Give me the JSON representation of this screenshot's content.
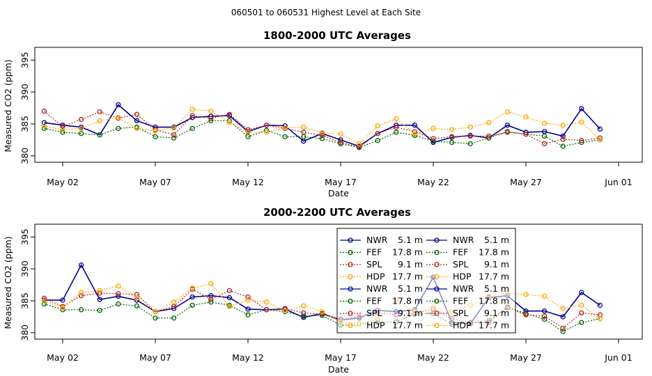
{
  "figure_title": "060501  to  060531 Highest Level at Each Site",
  "colors": {
    "NWR": "#00008b",
    "FEF": "#006400",
    "SPL": "#b22222",
    "HDP": "#ffa500"
  },
  "chart_data": [
    {
      "type": "line",
      "title": "1800-2000 UTC Averages",
      "xlabel": "Date",
      "ylabel": "Measured CO2 (ppm)",
      "ylim": [
        379,
        397
      ],
      "yticks": [
        "380",
        "385",
        "390",
        "395"
      ],
      "xticks": [
        "May 02",
        "May 07",
        "May 12",
        "May 17",
        "May 22",
        "May 27",
        "Jun 01"
      ],
      "x_start_day": 1,
      "x_end_day": 31,
      "series": [
        {
          "name": "NWR",
          "height": "5.1 m",
          "values": [
            385.2,
            384.8,
            384.5,
            383.3,
            388.0,
            385.5,
            384.5,
            384.5,
            386.0,
            386.2,
            386.3,
            383.8,
            384.8,
            384.7,
            382.3,
            383.5,
            382.5,
            381.5,
            383.5,
            384.8,
            384.8,
            382.1,
            382.9,
            383.2,
            382.8,
            384.8,
            383.7,
            383.8,
            383.1,
            387.4,
            384.2
          ]
        },
        {
          "name": "FEF",
          "height": "17.8 m",
          "values": [
            384.3,
            383.7,
            383.5,
            383.3,
            384.3,
            384.5,
            383.0,
            382.8,
            384.3,
            385.5,
            385.5,
            383.0,
            384.0,
            383.0,
            383.0,
            382.7,
            381.9,
            381.3,
            382.4,
            383.7,
            383.2,
            382.3,
            382.1,
            381.9,
            382.8,
            383.8,
            383.4,
            383.1,
            381.5,
            382.1,
            382.5
          ]
        },
        {
          "name": "SPL",
          "height": "9.1 m",
          "values": [
            387.0,
            384.6,
            385.7,
            386.9,
            385.9,
            386.5,
            384.1,
            383.3,
            386.3,
            385.9,
            386.5,
            384.1,
            384.8,
            384.3,
            383.7,
            383.2,
            382.1,
            381.4,
            383.5,
            384.5,
            383.8,
            382.7,
            383.0,
            383.1,
            383.1,
            383.7,
            383.4,
            381.9,
            382.6,
            382.4,
            382.8
          ]
        },
        {
          "name": "HDP",
          "height": "17.7 m",
          "values": [
            384.7,
            384.1,
            384.3,
            385.5,
            386.0,
            384.3,
            383.9,
            384.4,
            387.3,
            387.0,
            385.2,
            383.7,
            383.7,
            384.4,
            384.5,
            383.6,
            383.4,
            381.9,
            384.7,
            385.8,
            383.4,
            384.3,
            384.1,
            384.5,
            385.2,
            386.9,
            386.1,
            385.1,
            384.8,
            385.3,
            382.5
          ]
        }
      ]
    },
    {
      "type": "line",
      "title": "2000-2200 UTC Averages",
      "xlabel": "Date",
      "ylabel": "Measured CO2 (ppm)",
      "ylim": [
        379,
        397
      ],
      "yticks": [
        "380",
        "385",
        "390",
        "395"
      ],
      "xticks": [
        "May 02",
        "May 07",
        "May 12",
        "May 17",
        "May 22",
        "May 27",
        "Jun 01"
      ],
      "x_start_day": 1,
      "x_end_day": 31,
      "series": [
        {
          "name": "NWR",
          "height": "5.1 m",
          "values": [
            385.1,
            385.1,
            390.6,
            385.2,
            385.7,
            385.1,
            383.3,
            383.8,
            385.6,
            385.8,
            385.5,
            383.7,
            383.6,
            383.7,
            382.4,
            383.0,
            382.0,
            382.3,
            383.5,
            383.3,
            383.6,
            388.7,
            381.6,
            381.4,
            385.5,
            385.8,
            383.4,
            383.4,
            382.5,
            386.3,
            384.3
          ]
        },
        {
          "name": "FEF",
          "height": "17.8 m",
          "values": [
            384.5,
            383.6,
            383.6,
            383.5,
            384.5,
            384.2,
            382.3,
            382.3,
            384.3,
            384.8,
            384.3,
            382.8,
            383.6,
            383.3,
            382.6,
            382.7,
            381.2,
            381.4,
            381.6,
            381.7,
            382.9,
            383.0,
            381.3,
            381.6,
            381.9,
            384.0,
            383.0,
            382.1,
            380.2,
            381.6,
            382.2
          ]
        },
        {
          "name": "SPL",
          "height": "9.1 m",
          "values": [
            385.4,
            384.1,
            385.8,
            386.2,
            386.1,
            386.0,
            383.3,
            384.1,
            386.8,
            385.2,
            386.6,
            385.6,
            383.6,
            383.8,
            383.1,
            382.9,
            382.1,
            382.5,
            383.1,
            382.8,
            383.0,
            383.7,
            382.2,
            381.6,
            381.6,
            383.9,
            382.8,
            382.6,
            380.7,
            383.1,
            382.8
          ]
        },
        {
          "name": "HDP",
          "height": "17.7 m",
          "values": [
            385.0,
            383.9,
            386.3,
            386.6,
            387.3,
            385.4,
            383.3,
            384.8,
            387.0,
            387.7,
            384.1,
            385.1,
            384.8,
            383.4,
            384.2,
            383.3,
            381.7,
            381.4,
            382.1,
            385.2,
            383.3,
            384.0,
            383.3,
            384.3,
            385.7,
            386.2,
            386.0,
            385.7,
            383.8,
            384.3,
            382.2
          ]
        }
      ]
    }
  ]
}
